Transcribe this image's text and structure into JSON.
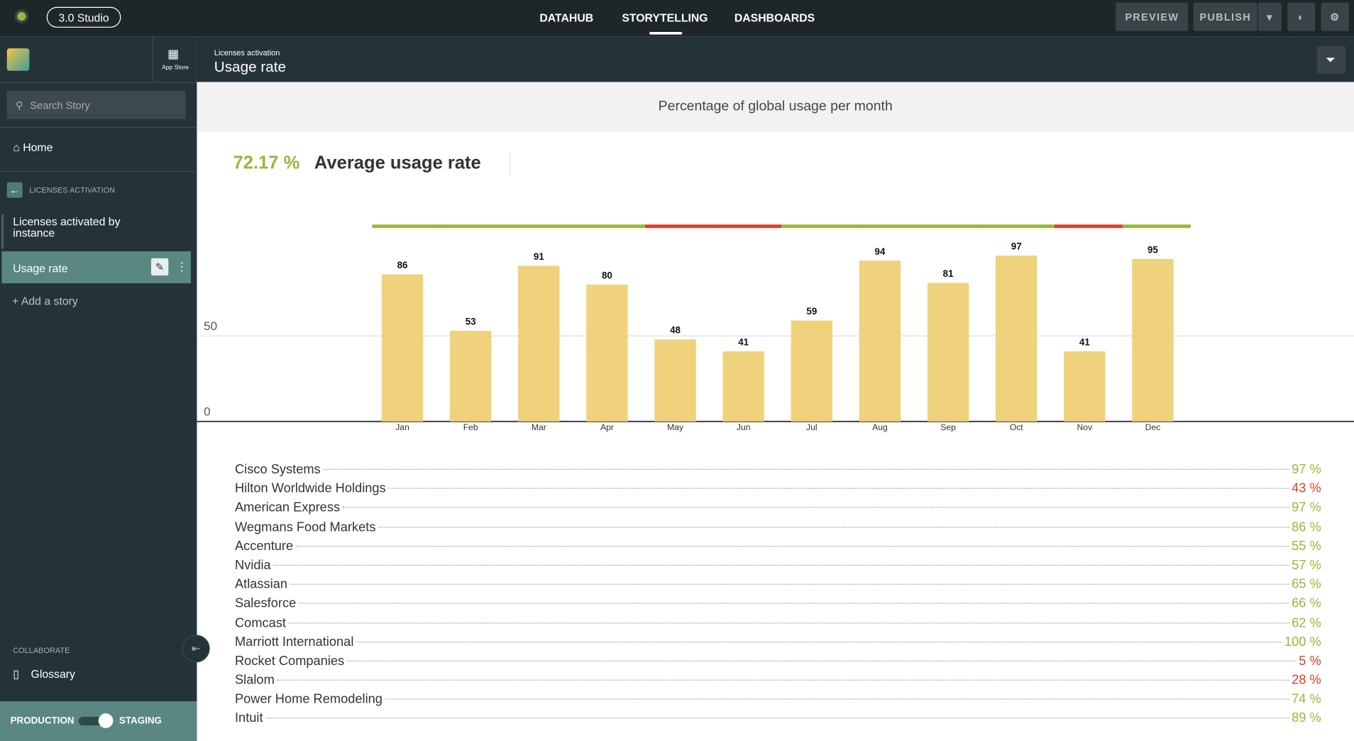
{
  "topbar": {
    "badge": "3.0 Studio",
    "nav": [
      "DATAHUB",
      "STORYTELLING",
      "DASHBOARDS"
    ],
    "active_nav": 1,
    "buttons": [
      "PREVIEW",
      "PUBLISH"
    ]
  },
  "sidebar": {
    "app_store": "App Store",
    "search": "Search Story",
    "home": "Home",
    "section": "LICENSES ACTIVATION",
    "stories": [
      "Licenses activated by instance",
      "Usage rate"
    ],
    "active_story": 1,
    "add": "Add a story",
    "collaborate": "COLLABORATE",
    "glossary": "Glossary",
    "env": [
      "PRODUCTION",
      "STAGING"
    ]
  },
  "header": {
    "breadcrumb": "Licenses activation",
    "title": "Usage rate"
  },
  "chart_data": {
    "type": "bar",
    "title": "Percentage of global usage per month",
    "kpi": {
      "value": "72.17 %",
      "label": "Average usage rate"
    },
    "categories": [
      "Jan",
      "Feb",
      "Mar",
      "Apr",
      "May",
      "Jun",
      "Jul",
      "Aug",
      "Sep",
      "Oct",
      "Nov",
      "Dec"
    ],
    "values": [
      86,
      53,
      91,
      80,
      48,
      41,
      59,
      94,
      81,
      97,
      41,
      95
    ],
    "color": "#f0d17c",
    "band_colors": [
      "#9ab53a",
      "#9ab53a",
      "#9ab53a",
      "#9ab53a",
      "#d9402b",
      "#d9402b",
      "#9ab53a",
      "#9ab53a",
      "#9ab53a",
      "#9ab53a",
      "#d9402b",
      "#9ab53a"
    ],
    "ylim": [
      0,
      100
    ],
    "yticks": [
      0,
      50
    ],
    "grid": true
  },
  "list": [
    {
      "name": "Cisco Systems",
      "value": "97 %",
      "color": "#9ab53a"
    },
    {
      "name": "Hilton Worldwide Holdings",
      "value": "43 %",
      "color": "#d9402b"
    },
    {
      "name": "American Express",
      "value": "97 %",
      "color": "#9ab53a"
    },
    {
      "name": "Wegmans Food Markets",
      "value": "86 %",
      "color": "#9ab53a"
    },
    {
      "name": "Accenture",
      "value": "55 %",
      "color": "#9ab53a"
    },
    {
      "name": "Nvidia",
      "value": "57 %",
      "color": "#9ab53a"
    },
    {
      "name": "Atlassian",
      "value": "65 %",
      "color": "#9ab53a"
    },
    {
      "name": "Salesforce",
      "value": "66 %",
      "color": "#9ab53a"
    },
    {
      "name": "Comcast",
      "value": "62 %",
      "color": "#9ab53a"
    },
    {
      "name": "Marriott International",
      "value": "100 %",
      "color": "#9ab53a"
    },
    {
      "name": "Rocket Companies",
      "value": "5 %",
      "color": "#d9402b"
    },
    {
      "name": "Slalom",
      "value": "28 %",
      "color": "#d9402b"
    },
    {
      "name": "Power Home Remodeling",
      "value": "74 %",
      "color": "#9ab53a"
    },
    {
      "name": "Intuit",
      "value": "89 %",
      "color": "#9ab53a"
    }
  ]
}
